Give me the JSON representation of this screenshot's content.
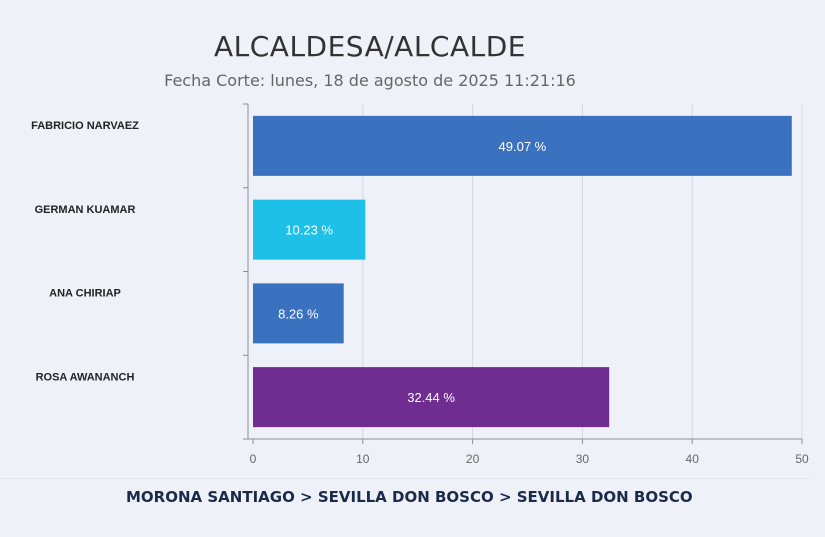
{
  "chart_data": {
    "type": "bar",
    "orientation": "horizontal",
    "title": "ALCALDESA/ALCALDE",
    "subtitle": "Fecha Corte: lunes, 18 de agosto de 2025 11:21:16",
    "categories": [
      "FABRICIO NARVAEZ",
      "GERMAN KUAMAR",
      "ANA CHIRIAP",
      "ROSA AWANANCH"
    ],
    "values": [
      49.07,
      10.23,
      8.26,
      32.44
    ],
    "data_labels": [
      "49.07 %",
      "10.23 %",
      "8.26 %",
      "32.44 %"
    ],
    "colors": [
      "#3a72c0",
      "#1ec0e8",
      "#3a72c0",
      "#6f2c91"
    ],
    "xlim": [
      0,
      50
    ],
    "xticks": [
      0,
      10,
      20,
      30,
      40,
      50
    ],
    "xlabel": "",
    "ylabel": "",
    "grid": true
  },
  "breadcrumb": "MORONA SANTIAGO > SEVILLA DON BOSCO > SEVILLA DON BOSCO"
}
